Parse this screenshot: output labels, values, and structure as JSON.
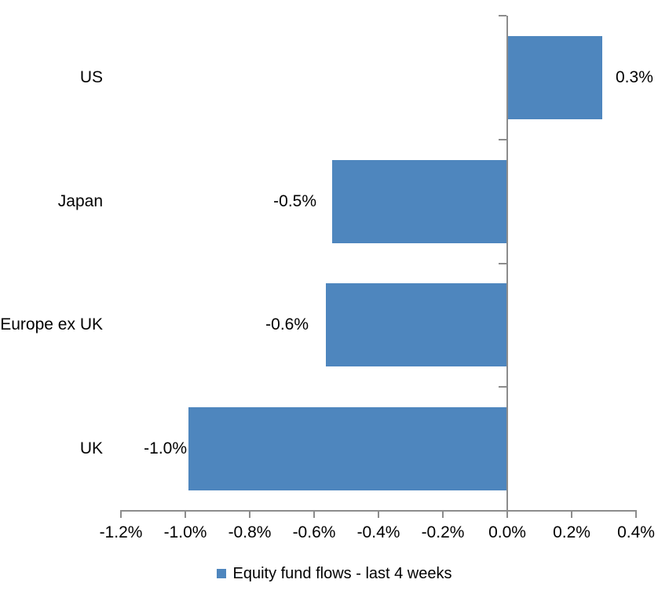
{
  "chart_data": {
    "type": "bar",
    "orientation": "horizontal",
    "title": "",
    "categories": [
      "US",
      "Japan",
      "Europe ex UK",
      "UK"
    ],
    "values": [
      0.3,
      -0.5,
      -0.6,
      -1.0
    ],
    "data_labels": [
      "0.3%",
      "-0.5%",
      "-0.6%",
      "-1.0%"
    ],
    "plot_values": [
      0.293,
      -0.545,
      -0.563,
      -0.99
    ],
    "unit": "%",
    "series": [
      {
        "name": "Equity fund flows - last 4 weeks",
        "values": [
          0.3,
          -0.5,
          -0.6,
          -1.0
        ]
      }
    ],
    "x_axis": {
      "min": -1.2,
      "max": 0.4,
      "tick_step": 0.2,
      "ticks": [
        "-1.2%",
        "-1.0%",
        "-0.8%",
        "-0.6%",
        "-0.4%",
        "-0.2%",
        "0.0%",
        "0.2%",
        "0.4%"
      ],
      "tick_values": [
        -1.2,
        -1.0,
        -0.8,
        -0.6,
        -0.4,
        -0.2,
        0.0,
        0.2,
        0.4
      ]
    },
    "legend": {
      "position": "bottom",
      "entries": [
        {
          "label": "Equity fund flows - last 4 weeks",
          "color": "#4E86BE"
        }
      ]
    },
    "grid": false,
    "colors": {
      "bar": "#4E86BE",
      "axis": "#8C8C8C",
      "text": "#000000",
      "background": "#FFFFFF"
    }
  }
}
